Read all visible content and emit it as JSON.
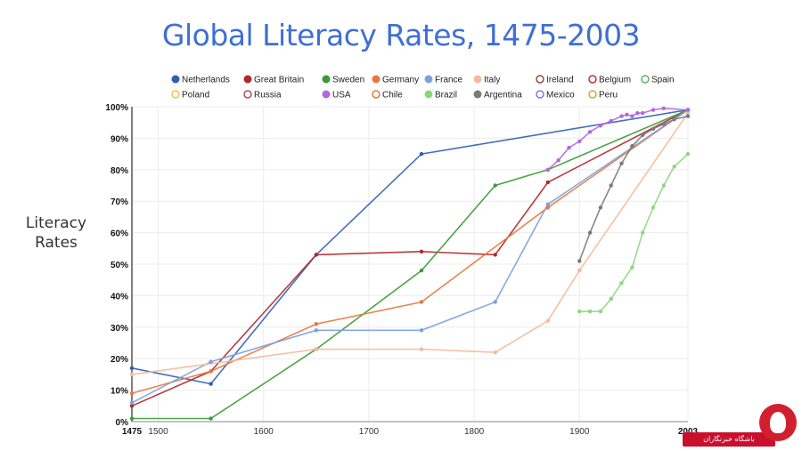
{
  "page": {
    "title": "Global Literacy Rates, 1475-2003",
    "watermark": "باشگاه خبرنگاران"
  },
  "chart_data": {
    "type": "line",
    "title": "Global Literacy Rates, 1475-2003",
    "xlabel": "",
    "ylabel": "Literacy Rates",
    "xlim": [
      1475,
      2003
    ],
    "ylim": [
      0,
      100
    ],
    "x_ticks": [
      1475,
      1500,
      1600,
      1700,
      1800,
      1900,
      2003
    ],
    "y_ticks": [
      "0%",
      "10%",
      "20%",
      "30%",
      "40%",
      "50%",
      "60%",
      "70%",
      "80%",
      "90%",
      "100%"
    ],
    "grid": true,
    "legend_position": "top",
    "series": [
      {
        "name": "Netherlands",
        "color": "#2d5fb4",
        "hollow": false,
        "points": [
          [
            1475,
            17
          ],
          [
            1550,
            12
          ],
          [
            1650,
            53
          ],
          [
            1750,
            85
          ],
          [
            2003,
            99
          ]
        ]
      },
      {
        "name": "Great Britain",
        "color": "#b3262e",
        "hollow": false,
        "points": [
          [
            1475,
            5
          ],
          [
            1550,
            16
          ],
          [
            1650,
            53
          ],
          [
            1750,
            54
          ],
          [
            1820,
            53
          ],
          [
            1870,
            76
          ],
          [
            2003,
            99
          ]
        ]
      },
      {
        "name": "Sweden",
        "color": "#3a9a35",
        "hollow": false,
        "points": [
          [
            1475,
            1
          ],
          [
            1550,
            1
          ],
          [
            1650,
            23
          ],
          [
            1750,
            48
          ],
          [
            1820,
            75
          ],
          [
            1870,
            80
          ],
          [
            2003,
            99
          ]
        ]
      },
      {
        "name": "Germany",
        "color": "#e8773d",
        "hollow": false,
        "points": [
          [
            1475,
            9
          ],
          [
            1550,
            16
          ],
          [
            1650,
            31
          ],
          [
            1750,
            38
          ],
          [
            1870,
            68
          ],
          [
            2003,
            99
          ]
        ]
      },
      {
        "name": "France",
        "color": "#7b9fe0",
        "hollow": false,
        "points": [
          [
            1475,
            6
          ],
          [
            1550,
            19
          ],
          [
            1650,
            29
          ],
          [
            1750,
            29
          ],
          [
            1820,
            38
          ],
          [
            1870,
            69
          ],
          [
            2003,
            99
          ]
        ]
      },
      {
        "name": "Italy",
        "color": "#f5b99a",
        "hollow": false,
        "points": [
          [
            1475,
            15
          ],
          [
            1650,
            23
          ],
          [
            1750,
            23
          ],
          [
            1820,
            22
          ],
          [
            1870,
            32
          ],
          [
            1900,
            48
          ],
          [
            2003,
            98
          ]
        ]
      },
      {
        "name": "Ireland",
        "color": "#8b4a3d",
        "hollow": true,
        "points": []
      },
      {
        "name": "Belgium",
        "color": "#c0302e",
        "hollow": true,
        "points": []
      },
      {
        "name": "Spain",
        "color": "#5cb85c",
        "hollow": true,
        "points": []
      },
      {
        "name": "Poland",
        "color": "#f2c14e",
        "hollow": true,
        "points": []
      },
      {
        "name": "Russia",
        "color": "#b34c5e",
        "hollow": true,
        "points": []
      },
      {
        "name": "USA",
        "color": "#b266e0",
        "hollow": false,
        "points": [
          [
            1870,
            80
          ],
          [
            1880,
            83
          ],
          [
            1890,
            87
          ],
          [
            1900,
            89
          ],
          [
            1910,
            92
          ],
          [
            1920,
            94
          ],
          [
            1930,
            95.5
          ],
          [
            1940,
            97
          ],
          [
            1945,
            97.5
          ],
          [
            1950,
            97
          ],
          [
            1955,
            98
          ],
          [
            1960,
            98
          ],
          [
            1970,
            99
          ],
          [
            1980,
            99.5
          ],
          [
            2003,
            99
          ]
        ]
      },
      {
        "name": "Chile",
        "color": "#e8773d",
        "hollow": true,
        "points": []
      },
      {
        "name": "Brazil",
        "color": "#8ed67e",
        "hollow": false,
        "points": [
          [
            1900,
            35
          ],
          [
            1910,
            35
          ],
          [
            1920,
            35
          ],
          [
            1930,
            39
          ],
          [
            1940,
            44
          ],
          [
            1950,
            49
          ],
          [
            1960,
            60
          ],
          [
            1970,
            68
          ],
          [
            1980,
            75
          ],
          [
            1990,
            81
          ],
          [
            2003,
            85
          ]
        ]
      },
      {
        "name": "Argentina",
        "color": "#7a7a7a",
        "hollow": false,
        "points": [
          [
            1900,
            51
          ],
          [
            1910,
            60
          ],
          [
            1920,
            68
          ],
          [
            1930,
            75
          ],
          [
            1940,
            82
          ],
          [
            1950,
            87.5
          ],
          [
            1960,
            91
          ],
          [
            1970,
            93
          ],
          [
            1980,
            94.5
          ],
          [
            1990,
            96
          ],
          [
            2003,
            97
          ]
        ]
      },
      {
        "name": "Mexico",
        "color": "#8f6fe0",
        "hollow": true,
        "points": []
      },
      {
        "name": "Peru",
        "color": "#d9a638",
        "hollow": true,
        "points": []
      }
    ]
  }
}
